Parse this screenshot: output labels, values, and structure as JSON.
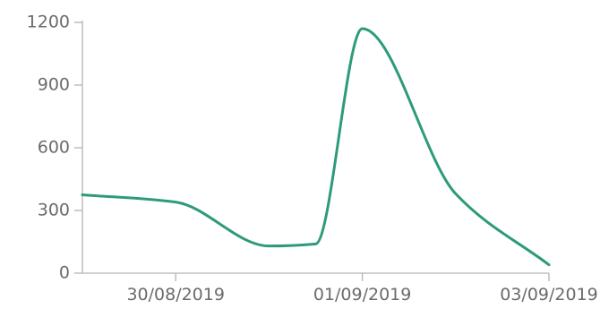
{
  "chart_data": {
    "type": "line",
    "title": "",
    "xlabel": "",
    "ylabel": "",
    "x": [
      "2019-08-29",
      "2019-08-30",
      "2019-08-31",
      "2019-08-31T12:00",
      "2019-09-01",
      "2019-09-02",
      "2019-09-03"
    ],
    "series": [
      {
        "values": [
          375,
          340,
          130,
          140,
          1170,
          380,
          40
        ]
      }
    ],
    "ylim": [
      0,
      1200
    ],
    "yticks": [
      0,
      300,
      600,
      900,
      1200
    ],
    "y_tick_labels": [
      "0",
      "300",
      "600",
      "900",
      "1200"
    ],
    "xlim": [
      "2019-08-29",
      "2019-09-03"
    ],
    "xticks": [
      "2019-08-30",
      "2019-09-01",
      "2019-09-03"
    ],
    "x_tick_labels": [
      "30/08/2019",
      "01/09/2019",
      "03/09/2019"
    ],
    "grid": false,
    "line_color": "#2e9a7c",
    "axis_color": "#b4b4b4",
    "label_color": "#6b6b6b"
  }
}
